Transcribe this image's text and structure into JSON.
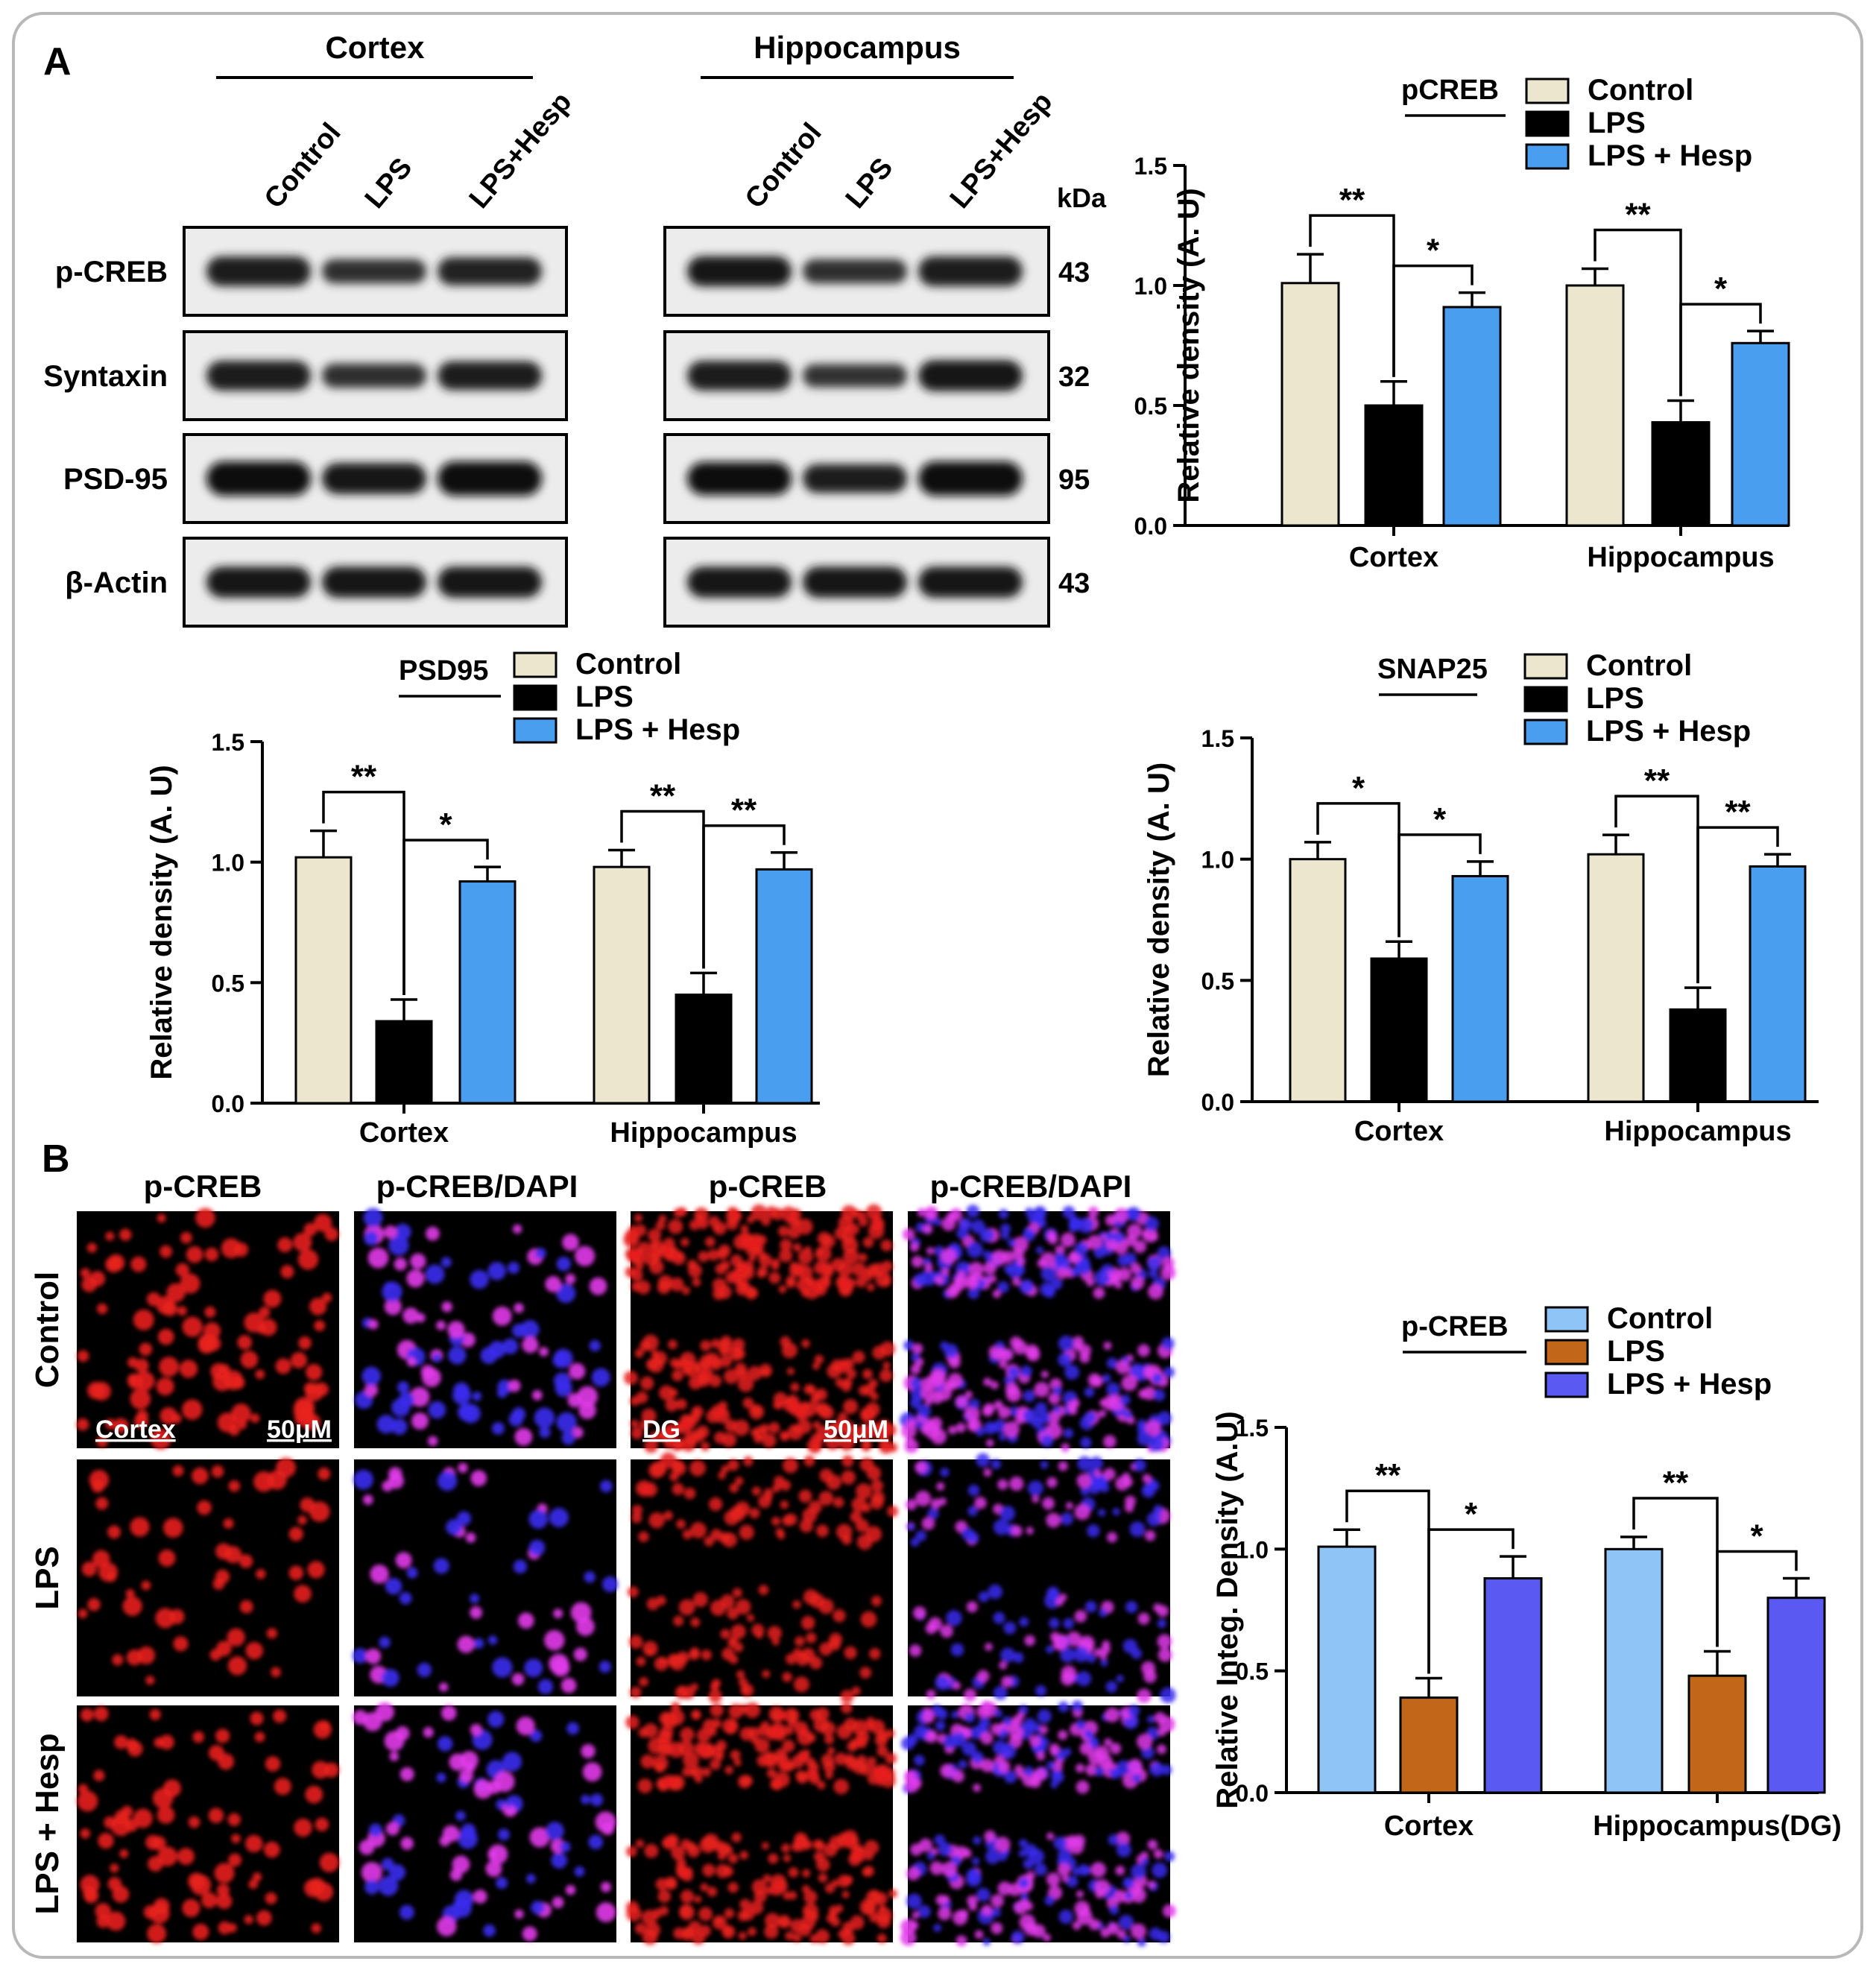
{
  "panel_labels": {
    "a": "A",
    "b": "B"
  },
  "western_blot": {
    "groups": [
      {
        "title": "Cortex",
        "lanes": [
          "Control",
          "LPS",
          "LPS+Hesp"
        ]
      },
      {
        "title": "Hippocampus",
        "lanes": [
          "Control",
          "LPS",
          "LPS+Hesp"
        ]
      }
    ],
    "kda_label": "kDa",
    "rows": [
      {
        "protein": "p-CREB",
        "kda": "43",
        "intensity": [
          [
            0.8,
            0.55,
            0.72
          ],
          [
            0.82,
            0.55,
            0.8
          ]
        ]
      },
      {
        "protein": "Syntaxin",
        "kda": "32",
        "intensity": [
          [
            0.8,
            0.55,
            0.75
          ],
          [
            0.8,
            0.5,
            0.85
          ]
        ]
      },
      {
        "protein": "PSD-95",
        "kda": "95",
        "intensity": [
          [
            1.0,
            0.85,
            1.0
          ],
          [
            0.95,
            0.75,
            1.0
          ]
        ]
      },
      {
        "protein": "β-Actin",
        "kda": "43",
        "intensity": [
          [
            0.85,
            0.85,
            0.85
          ],
          [
            0.85,
            0.85,
            0.85
          ]
        ]
      }
    ]
  },
  "if_panel": {
    "column_headers": [
      "p-CREB",
      "p-CREB/DAPI",
      "p-CREB",
      "p-CREB/DAPI"
    ],
    "row_labels": [
      "Control",
      "LPS",
      "LPS + Hesp"
    ],
    "scale_labels": {
      "region1": "Cortex",
      "scale1": "50μM",
      "region2": "DG",
      "scale2": "50μM"
    }
  },
  "chart_data": [
    {
      "type": "bar",
      "legend_title": "pCREB",
      "categories": [
        "Cortex",
        "Hippocampus"
      ],
      "series": [
        {
          "name": "Control",
          "values": [
            1.01,
            1.0
          ],
          "errors": [
            0.12,
            0.07
          ],
          "color": "#EDE6CF"
        },
        {
          "name": "LPS",
          "values": [
            0.5,
            0.43
          ],
          "errors": [
            0.1,
            0.09
          ],
          "color": "#000000"
        },
        {
          "name": "LPS + Hesp",
          "values": [
            0.91,
            0.76
          ],
          "errors": [
            0.06,
            0.05
          ],
          "color": "#4A9EF0"
        }
      ],
      "significance": [
        {
          "category": 0,
          "from": 0,
          "to": 1,
          "label": "**"
        },
        {
          "category": 0,
          "from": 1,
          "to": 2,
          "label": "*"
        },
        {
          "category": 1,
          "from": 0,
          "to": 1,
          "label": "**"
        },
        {
          "category": 1,
          "from": 1,
          "to": 2,
          "label": "*"
        }
      ],
      "ylabel": "Relative density (A. U)",
      "ylim": [
        0,
        1.5
      ],
      "yticks": [
        "0.0",
        "0.5",
        "1.0",
        "1.5"
      ],
      "legend_position": "top-right"
    },
    {
      "type": "bar",
      "legend_title": "PSD95",
      "categories": [
        "Cortex",
        "Hippocampus"
      ],
      "series": [
        {
          "name": "Control",
          "values": [
            1.02,
            0.98
          ],
          "errors": [
            0.11,
            0.07
          ],
          "color": "#EDE6CF"
        },
        {
          "name": "LPS",
          "values": [
            0.34,
            0.45
          ],
          "errors": [
            0.09,
            0.09
          ],
          "color": "#000000"
        },
        {
          "name": "LPS + Hesp",
          "values": [
            0.92,
            0.97
          ],
          "errors": [
            0.06,
            0.07
          ],
          "color": "#4A9EF0"
        }
      ],
      "significance": [
        {
          "category": 0,
          "from": 0,
          "to": 1,
          "label": "**"
        },
        {
          "category": 0,
          "from": 1,
          "to": 2,
          "label": "*"
        },
        {
          "category": 1,
          "from": 0,
          "to": 1,
          "label": "**"
        },
        {
          "category": 1,
          "from": 1,
          "to": 2,
          "label": "**"
        }
      ],
      "ylabel": "Relative density (A. U)",
      "ylim": [
        0,
        1.5
      ],
      "yticks": [
        "0.0",
        "0.5",
        "1.0",
        "1.5"
      ],
      "legend_position": "top-right"
    },
    {
      "type": "bar",
      "legend_title": "SNAP25",
      "categories": [
        "Cortex",
        "Hippocampus"
      ],
      "series": [
        {
          "name": "Control",
          "values": [
            1.0,
            1.02
          ],
          "errors": [
            0.07,
            0.08
          ],
          "color": "#EDE6CF"
        },
        {
          "name": "LPS",
          "values": [
            0.59,
            0.38
          ],
          "errors": [
            0.07,
            0.09
          ],
          "color": "#000000"
        },
        {
          "name": "LPS + Hesp",
          "values": [
            0.93,
            0.97
          ],
          "errors": [
            0.06,
            0.05
          ],
          "color": "#4A9EF0"
        }
      ],
      "significance": [
        {
          "category": 0,
          "from": 0,
          "to": 1,
          "label": "*"
        },
        {
          "category": 0,
          "from": 1,
          "to": 2,
          "label": "*"
        },
        {
          "category": 1,
          "from": 0,
          "to": 1,
          "label": "**"
        },
        {
          "category": 1,
          "from": 1,
          "to": 2,
          "label": "**"
        }
      ],
      "ylabel": "Relative density (A. U)",
      "ylim": [
        0,
        1.5
      ],
      "yticks": [
        "0.0",
        "0.5",
        "1.0",
        "1.5"
      ],
      "legend_position": "top-right"
    },
    {
      "type": "bar",
      "legend_title": "p-CREB",
      "categories": [
        "Cortex",
        "Hippocampus(DG)"
      ],
      "series": [
        {
          "name": "Control",
          "values": [
            1.01,
            1.0
          ],
          "errors": [
            0.07,
            0.05
          ],
          "color": "#8EC4F6"
        },
        {
          "name": "LPS",
          "values": [
            0.39,
            0.48
          ],
          "errors": [
            0.08,
            0.1
          ],
          "color": "#C2661A"
        },
        {
          "name": "LPS + Hesp",
          "values": [
            0.88,
            0.8
          ],
          "errors": [
            0.09,
            0.08
          ],
          "color": "#5A5AF2"
        }
      ],
      "significance": [
        {
          "category": 0,
          "from": 0,
          "to": 1,
          "label": "**"
        },
        {
          "category": 0,
          "from": 1,
          "to": 2,
          "label": "*"
        },
        {
          "category": 1,
          "from": 0,
          "to": 1,
          "label": "**"
        },
        {
          "category": 1,
          "from": 1,
          "to": 2,
          "label": "*"
        }
      ],
      "ylabel": "Relative Integ. Density (A.U)",
      "ylim": [
        0,
        1.5
      ],
      "yticks": [
        "0.0",
        "0.5",
        "1.0",
        "1.5"
      ],
      "legend_position": "top-right"
    }
  ]
}
